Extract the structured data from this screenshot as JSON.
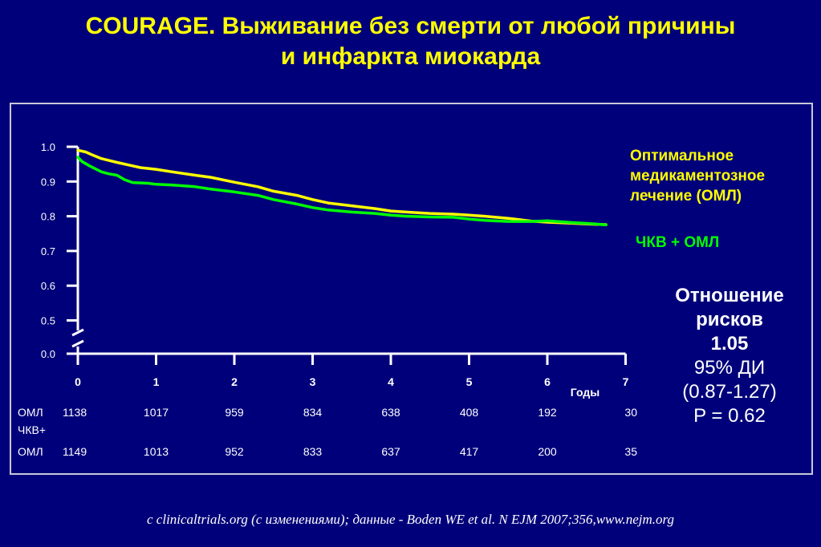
{
  "title": {
    "line1": "COURAGE. Выживание без смерти от любой причины",
    "line2": "и инфаркта миокарда"
  },
  "legend": {
    "oml_line1": "Оптимальное",
    "oml_line2": "медикаментозное",
    "oml_line3": "лечение (ОМЛ)",
    "pci": "ЧКВ + ОМЛ"
  },
  "hazard": {
    "line1": "Отношение",
    "line2": "рисков",
    "value": "1.05",
    "ci_label": "95% ДИ",
    "ci": "(0.87-1.27)",
    "p": "P = 0.62"
  },
  "source": "c clinicaltrials.org (с изменениями); данные - Boden WE et al. N EJM 2007;356,www.nejm.org",
  "colors": {
    "background": "#00007a",
    "oml": "#ffff00",
    "pci": "#00ff00",
    "text": "#ffffff"
  },
  "chart_data": {
    "type": "line",
    "xlabel": "Годы",
    "ylabel": "",
    "xlim": [
      0,
      7
    ],
    "ylim": [
      0.0,
      1.0
    ],
    "axis_break": "between 0.0 and 0.5",
    "x_ticks": [
      "0",
      "1",
      "2",
      "3",
      "4",
      "5",
      "6",
      "7"
    ],
    "y_ticks": [
      "1.0",
      "0.9",
      "0.8",
      "0.7",
      "0.6",
      "0.5",
      "0.0"
    ],
    "series": [
      {
        "name": "Оптимальное медикаментозное лечение (ОМЛ)",
        "color": "#ffff00",
        "x": [
          0,
          0.1,
          0.2,
          0.3,
          0.5,
          0.7,
          0.8,
          1.0,
          1.2,
          1.5,
          1.7,
          2.0,
          2.3,
          2.5,
          2.8,
          3.0,
          3.2,
          3.5,
          3.8,
          4.0,
          4.2,
          4.5,
          4.8,
          5.0,
          5.2,
          5.5,
          5.8,
          6.0,
          6.3,
          6.6,
          6.75
        ],
        "y": [
          0.99,
          0.985,
          0.975,
          0.966,
          0.955,
          0.945,
          0.94,
          0.935,
          0.928,
          0.918,
          0.912,
          0.898,
          0.885,
          0.872,
          0.86,
          0.848,
          0.838,
          0.83,
          0.822,
          0.815,
          0.812,
          0.808,
          0.806,
          0.803,
          0.8,
          0.794,
          0.786,
          0.783,
          0.78,
          0.777,
          0.776
        ]
      },
      {
        "name": "ЧКВ + ОМЛ",
        "color": "#00ff00",
        "x": [
          0,
          0.05,
          0.15,
          0.3,
          0.4,
          0.5,
          0.6,
          0.7,
          0.9,
          1.0,
          1.2,
          1.5,
          1.7,
          2.0,
          2.3,
          2.5,
          2.8,
          3.0,
          3.2,
          3.5,
          3.8,
          4.0,
          4.2,
          4.5,
          4.8,
          5.0,
          5.2,
          5.5,
          5.8,
          6.0,
          6.3,
          6.6,
          6.75
        ],
        "y": [
          0.97,
          0.958,
          0.945,
          0.928,
          0.922,
          0.918,
          0.905,
          0.897,
          0.895,
          0.892,
          0.89,
          0.885,
          0.878,
          0.87,
          0.86,
          0.848,
          0.835,
          0.825,
          0.818,
          0.812,
          0.808,
          0.803,
          0.8,
          0.798,
          0.797,
          0.792,
          0.788,
          0.785,
          0.785,
          0.787,
          0.782,
          0.778,
          0.775
        ]
      }
    ],
    "risk_table": {
      "rows": [
        {
          "label_line1": "ОМЛ",
          "label_line2": "",
          "values": [
            "1138",
            "1017",
            "959",
            "834",
            "638",
            "408",
            "192",
            "30"
          ]
        },
        {
          "label_line1": "ЧКВ+",
          "label_line2": "ОМЛ",
          "values": [
            "1149",
            "1013",
            "952",
            "833",
            "637",
            "417",
            "200",
            "35"
          ]
        }
      ]
    }
  }
}
